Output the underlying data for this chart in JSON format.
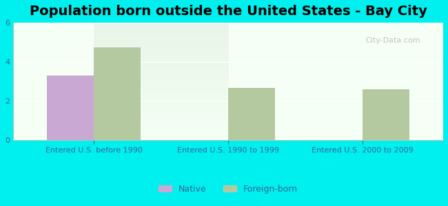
{
  "title": "Population born outside the United States - Bay City",
  "background_color": "#00EFEF",
  "plot_bg_gradient_top": "#e8f5e8",
  "plot_bg_gradient_bottom": "#f5fff5",
  "categories": [
    "Entered U.S. before 1990",
    "Entered U.S. 1990 to 1999",
    "Entered U.S. 2000 to 2009"
  ],
  "native_values": [
    3.3,
    0,
    0
  ],
  "foreign_values": [
    4.75,
    2.65,
    2.6
  ],
  "native_color": "#c9a8d4",
  "foreign_color": "#b5c9a0",
  "ylim": [
    0,
    6
  ],
  "yticks": [
    0,
    2,
    4,
    6
  ],
  "bar_width": 0.35,
  "legend_native": "Native",
  "legend_foreign": "Foreign-born",
  "watermark": "City-Data.com",
  "title_fontsize": 14,
  "axis_label_fontsize": 8,
  "legend_fontsize": 9
}
